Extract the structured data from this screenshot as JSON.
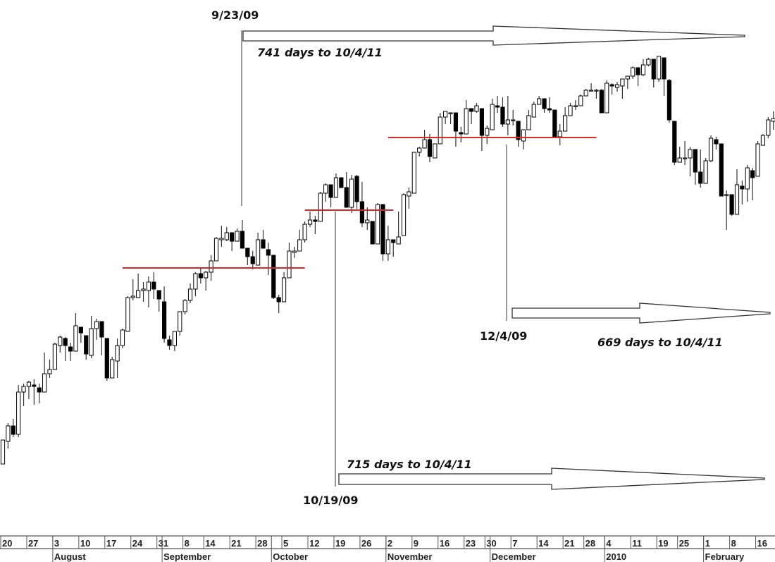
{
  "chart_data": {
    "type": "candlestick",
    "title": "",
    "xlabel": "",
    "ylabel": "",
    "ylim": [
      830,
      1200
    ],
    "grid": false,
    "colors": {
      "up_fill": "#ffffff",
      "down_fill": "#000000",
      "outline": "#000000",
      "support_line": "#d42a2a",
      "annotation": "#111111"
    },
    "first_date": "2009-07-20",
    "candles_ohlc": [
      [
        871,
        888,
        871,
        888
      ],
      [
        887,
        900,
        882,
        898
      ],
      [
        898,
        903,
        890,
        892
      ],
      [
        892,
        927,
        890,
        922
      ],
      [
        922,
        928,
        912,
        926
      ],
      [
        926,
        930,
        917,
        929
      ],
      [
        927,
        931,
        913,
        926
      ],
      [
        925,
        928,
        914,
        922
      ],
      [
        922,
        950,
        922,
        935
      ],
      [
        935,
        945,
        932,
        938
      ],
      [
        938,
        957,
        938,
        956
      ],
      [
        955,
        962,
        950,
        961
      ],
      [
        960,
        961,
        944,
        955
      ],
      [
        954,
        957,
        944,
        951
      ],
      [
        951,
        978,
        951,
        969
      ],
      [
        968,
        968,
        957,
        964
      ],
      [
        962,
        962,
        945,
        949
      ],
      [
        948,
        976,
        946,
        967
      ],
      [
        967,
        974,
        959,
        972
      ],
      [
        972,
        972,
        948,
        961
      ],
      [
        960,
        960,
        930,
        932
      ],
      [
        932,
        947,
        932,
        945
      ],
      [
        944,
        960,
        932,
        955
      ],
      [
        955,
        967,
        953,
        966
      ],
      [
        965,
        990,
        965,
        989
      ],
      [
        989,
        1002,
        987,
        990
      ],
      [
        989,
        1006,
        989,
        994
      ],
      [
        994,
        1000,
        986,
        995
      ],
      [
        994,
        1004,
        982,
        1000
      ],
      [
        1000,
        1007,
        988,
        995
      ],
      [
        994,
        994,
        979,
        988
      ],
      [
        986,
        997,
        957,
        960
      ],
      [
        959,
        962,
        952,
        955
      ],
      [
        955,
        965,
        951,
        965
      ],
      [
        965,
        979,
        962,
        979
      ],
      [
        979,
        988,
        977,
        987
      ],
      [
        987,
        999,
        985,
        995
      ],
      [
        995,
        1007,
        990,
        1006
      ],
      [
        1006,
        1010,
        999,
        1003
      ],
      [
        1003,
        1008,
        994,
        1007
      ],
      [
        1007,
        1019,
        1001,
        1015
      ],
      [
        1015,
        1032,
        1015,
        1031
      ],
      [
        1030,
        1040,
        1025,
        1031
      ],
      [
        1030,
        1039,
        1029,
        1035
      ],
      [
        1035,
        1035,
        1022,
        1029
      ],
      [
        1029,
        1038,
        1029,
        1036
      ],
      [
        1036,
        1044,
        1024,
        1024
      ],
      [
        1024,
        1024,
        1012,
        1018
      ],
      [
        1018,
        1022,
        1009,
        1013
      ],
      [
        1012,
        1035,
        1012,
        1030
      ],
      [
        1030,
        1037,
        1024,
        1024
      ],
      [
        1023,
        1028,
        1005,
        1019
      ],
      [
        1019,
        1019,
        988,
        989
      ],
      [
        989,
        991,
        978,
        986
      ],
      [
        986,
        1007,
        986,
        1003
      ],
      [
        1003,
        1028,
        1003,
        1022
      ],
      [
        1021,
        1025,
        1017,
        1022
      ],
      [
        1022,
        1037,
        1022,
        1030
      ],
      [
        1030,
        1043,
        1028,
        1041
      ],
      [
        1041,
        1050,
        1039,
        1044
      ],
      [
        1044,
        1047,
        1034,
        1043
      ],
      [
        1043,
        1064,
        1043,
        1063
      ],
      [
        1063,
        1070,
        1057,
        1069
      ],
      [
        1069,
        1069,
        1053,
        1060
      ],
      [
        1060,
        1077,
        1060,
        1074
      ],
      [
        1074,
        1074,
        1067,
        1067
      ],
      [
        1067,
        1078,
        1053,
        1053
      ],
      [
        1053,
        1076,
        1049,
        1073
      ],
      [
        1075,
        1076,
        1052,
        1057
      ],
      [
        1057,
        1071,
        1039,
        1042
      ],
      [
        1042,
        1053,
        1037,
        1044
      ],
      [
        1043,
        1043,
        1027,
        1027
      ],
      [
        1027,
        1056,
        1027,
        1055
      ],
      [
        1055,
        1055,
        1015,
        1020
      ],
      [
        1020,
        1040,
        1015,
        1030
      ],
      [
        1030,
        1030,
        1018,
        1028
      ],
      [
        1027,
        1050,
        1027,
        1032
      ],
      [
        1033,
        1063,
        1033,
        1062
      ],
      [
        1061,
        1067,
        1052,
        1064
      ],
      [
        1063,
        1092,
        1063,
        1092
      ],
      [
        1092,
        1096,
        1089,
        1095
      ],
      [
        1095,
        1108,
        1095,
        1101
      ],
      [
        1101,
        1105,
        1085,
        1089
      ],
      [
        1088,
        1098,
        1088,
        1098
      ],
      [
        1098,
        1120,
        1098,
        1117
      ],
      [
        1117,
        1121,
        1112,
        1121
      ],
      [
        1120,
        1120,
        1112,
        1120
      ],
      [
        1120,
        1120,
        1096,
        1107
      ],
      [
        1106,
        1110,
        1099,
        1105
      ],
      [
        1105,
        1129,
        1105,
        1123
      ],
      [
        1123,
        1123,
        1112,
        1121
      ],
      [
        1121,
        1127,
        1120,
        1125
      ],
      [
        1123,
        1123,
        1093,
        1104
      ],
      [
        1104,
        1111,
        1098,
        1109
      ],
      [
        1108,
        1130,
        1108,
        1126
      ],
      [
        1125,
        1132,
        1120,
        1124
      ],
      [
        1124,
        1131,
        1110,
        1112
      ],
      [
        1112,
        1132,
        1104,
        1115
      ],
      [
        1115,
        1122,
        1111,
        1115
      ],
      [
        1114,
        1114,
        1096,
        1101
      ],
      [
        1100,
        1108,
        1094,
        1108
      ],
      [
        1108,
        1122,
        1108,
        1118
      ],
      [
        1117,
        1128,
        1117,
        1126
      ],
      [
        1126,
        1132,
        1126,
        1130
      ],
      [
        1130,
        1130,
        1120,
        1123
      ],
      [
        1123,
        1131,
        1120,
        1122
      ],
      [
        1122,
        1122,
        1103,
        1103
      ],
      [
        1103,
        1112,
        1097,
        1107
      ],
      [
        1107,
        1124,
        1107,
        1118
      ],
      [
        1118,
        1127,
        1118,
        1125
      ],
      [
        1125,
        1129,
        1122,
        1125
      ],
      [
        1125,
        1133,
        1125,
        1132
      ],
      [
        1132,
        1137,
        1132,
        1136
      ],
      [
        1136,
        1141,
        1136,
        1136
      ],
      [
        1136,
        1137,
        1130,
        1136
      ],
      [
        1136,
        1137,
        1120,
        1120
      ],
      [
        1120,
        1143,
        1120,
        1141
      ],
      [
        1140,
        1141,
        1133,
        1139
      ],
      [
        1138,
        1142,
        1135,
        1140
      ],
      [
        1139,
        1144,
        1130,
        1144
      ],
      [
        1144,
        1146,
        1137,
        1146
      ],
      [
        1146,
        1153,
        1144,
        1152
      ],
      [
        1152,
        1152,
        1139,
        1147
      ],
      [
        1147,
        1158,
        1146,
        1154
      ],
      [
        1154,
        1159,
        1153,
        1158
      ],
      [
        1158,
        1158,
        1138,
        1144
      ],
      [
        1144,
        1160,
        1142,
        1160
      ],
      [
        1159,
        1159,
        1132,
        1144
      ],
      [
        1143,
        1144,
        1113,
        1115
      ],
      [
        1114,
        1114,
        1083,
        1085
      ],
      [
        1085,
        1096,
        1085,
        1088
      ],
      [
        1088,
        1100,
        1083,
        1088
      ],
      [
        1088,
        1096,
        1075,
        1094
      ],
      [
        1094,
        1094,
        1069,
        1078
      ],
      [
        1078,
        1094,
        1067,
        1070
      ],
      [
        1070,
        1088,
        1070,
        1086
      ],
      [
        1086,
        1104,
        1085,
        1102
      ],
      [
        1101,
        1103,
        1094,
        1098
      ],
      [
        1098,
        1098,
        1061,
        1061
      ],
      [
        1062,
        1065,
        1037,
        1062
      ],
      [
        1062,
        1062,
        1047,
        1048
      ],
      [
        1048,
        1080,
        1048,
        1069
      ],
      [
        1068,
        1072,
        1055,
        1066
      ],
      [
        1066,
        1083,
        1057,
        1081
      ],
      [
        1079,
        1081,
        1058,
        1074
      ],
      [
        1075,
        1100,
        1075,
        1098
      ],
      [
        1097,
        1105,
        1097,
        1104
      ],
      [
        1104,
        1117,
        1102,
        1115
      ],
      [
        1114,
        1121,
        1108,
        1116
      ]
    ],
    "support_lines": [
      {
        "level": 1010,
        "from": "2009-08-20",
        "to": "2009-10-09"
      },
      {
        "level": 1051,
        "from": "2009-10-09",
        "to": "2009-11-03"
      },
      {
        "level": 1102.5,
        "from": "2009-11-02",
        "to": "2009-12-30"
      }
    ],
    "annotations": [
      {
        "date_label": "9/23/09",
        "date": "2009-09-23",
        "text": "741 days to 10/4/11"
      },
      {
        "date_label": "10/19/09",
        "date": "2009-10-19",
        "text": "715 days to 10/4/11"
      },
      {
        "date_label": "12/4/09",
        "date": "2009-12-04",
        "text": "669 days to 10/4/11"
      }
    ],
    "week_ticks": [
      {
        "label": "20",
        "date": "2009-07-20"
      },
      {
        "label": "27",
        "date": "2009-07-27"
      },
      {
        "label": "3",
        "date": "2009-08-03"
      },
      {
        "label": "10",
        "date": "2009-08-10"
      },
      {
        "label": "17",
        "date": "2009-08-17"
      },
      {
        "label": "24",
        "date": "2009-08-24"
      },
      {
        "label": "31",
        "date": "2009-08-31"
      },
      {
        "label": "8",
        "date": "2009-09-08"
      },
      {
        "label": "14",
        "date": "2009-09-14"
      },
      {
        "label": "21",
        "date": "2009-09-21"
      },
      {
        "label": "28",
        "date": "2009-09-28"
      },
      {
        "label": "5",
        "date": "2009-10-05"
      },
      {
        "label": "12",
        "date": "2009-10-12"
      },
      {
        "label": "19",
        "date": "2009-10-19"
      },
      {
        "label": "26",
        "date": "2009-10-26"
      },
      {
        "label": "2",
        "date": "2009-11-02"
      },
      {
        "label": "9",
        "date": "2009-11-09"
      },
      {
        "label": "16",
        "date": "2009-11-16"
      },
      {
        "label": "23",
        "date": "2009-11-23"
      },
      {
        "label": "30",
        "date": "2009-11-30"
      },
      {
        "label": "7",
        "date": "2009-12-07"
      },
      {
        "label": "14",
        "date": "2009-12-14"
      },
      {
        "label": "21",
        "date": "2009-12-21"
      },
      {
        "label": "28",
        "date": "2009-12-28"
      },
      {
        "label": "4",
        "date": "2010-01-04"
      },
      {
        "label": "11",
        "date": "2010-01-11"
      },
      {
        "label": "19",
        "date": "2010-01-19"
      },
      {
        "label": "25",
        "date": "2010-01-25"
      },
      {
        "label": "1",
        "date": "2010-02-01"
      },
      {
        "label": "8",
        "date": "2010-02-08"
      },
      {
        "label": "16",
        "date": "2010-02-16"
      }
    ],
    "month_ticks": [
      {
        "label": "August",
        "date": "2009-08-03"
      },
      {
        "label": "September",
        "date": "2009-09-01"
      },
      {
        "label": "October",
        "date": "2009-10-01"
      },
      {
        "label": "November",
        "date": "2009-11-02"
      },
      {
        "label": "December",
        "date": "2009-12-01"
      },
      {
        "label": "2010",
        "date": "2010-01-04"
      },
      {
        "label": "February",
        "date": "2010-02-01"
      }
    ]
  }
}
